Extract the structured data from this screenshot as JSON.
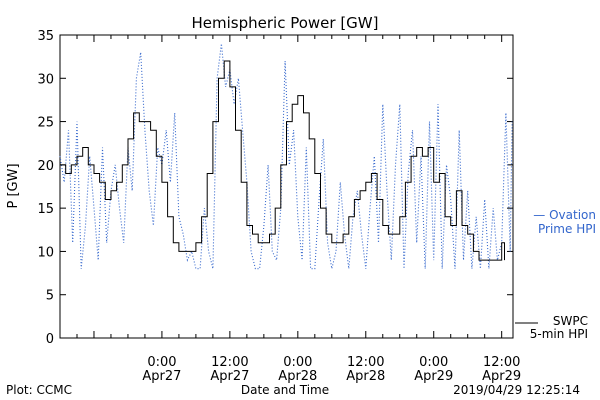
{
  "chart_data": {
    "type": "line",
    "title": "Hemispheric Power [GW]",
    "xlabel": "Date and Time",
    "ylabel": "P [GW]",
    "ylim": [
      0,
      35
    ],
    "yticks": [
      0,
      5,
      10,
      15,
      20,
      25,
      30,
      35
    ],
    "xlim": [
      "2019-04-26 06:00",
      "2019-04-29 14:00"
    ],
    "xticks": [
      {
        "t": "2019-04-27 00:00",
        "top": "0:00",
        "bottom": "Apr27"
      },
      {
        "t": "2019-04-27 12:00",
        "top": "12:00",
        "bottom": "Apr27"
      },
      {
        "t": "2019-04-28 00:00",
        "top": "0:00",
        "bottom": "Apr28"
      },
      {
        "t": "2019-04-28 12:00",
        "top": "12:00",
        "bottom": "Apr28"
      },
      {
        "t": "2019-04-29 00:00",
        "top": "0:00",
        "bottom": "Apr29"
      },
      {
        "t": "2019-04-29 12:00",
        "top": "12:00",
        "bottom": "Apr29"
      }
    ],
    "legend": [
      {
        "name_line1": "— Ovation",
        "name_line2": "Prime HPI",
        "color": "#3366cc",
        "style": "dotted"
      },
      {
        "name_line1": "SWPC",
        "name_line2": "5-min HPI",
        "color": "#000000",
        "style": "solid"
      }
    ],
    "series": [
      {
        "name": "Ovation Prime HPI",
        "color": "#3366cc",
        "style": "dotted",
        "points": [
          [
            "2019-04-26 06:00",
            21
          ],
          [
            "2019-04-26 06:45",
            18
          ],
          [
            "2019-04-26 07:30",
            24
          ],
          [
            "2019-04-26 08:15",
            11
          ],
          [
            "2019-04-26 09:00",
            25
          ],
          [
            "2019-04-26 09:45",
            8
          ],
          [
            "2019-04-26 10:30",
            13
          ],
          [
            "2019-04-26 11:15",
            21
          ],
          [
            "2019-04-26 12:00",
            15
          ],
          [
            "2019-04-26 12:45",
            9
          ],
          [
            "2019-04-26 13:30",
            22
          ],
          [
            "2019-04-26 14:15",
            11
          ],
          [
            "2019-04-26 15:00",
            17
          ],
          [
            "2019-04-26 15:45",
            20
          ],
          [
            "2019-04-26 16:30",
            15
          ],
          [
            "2019-04-26 17:15",
            11
          ],
          [
            "2019-04-26 18:00",
            22
          ],
          [
            "2019-04-26 18:45",
            17
          ],
          [
            "2019-04-26 19:30",
            30
          ],
          [
            "2019-04-26 20:15",
            33
          ],
          [
            "2019-04-26 21:00",
            24
          ],
          [
            "2019-04-26 21:45",
            17
          ],
          [
            "2019-04-26 22:30",
            13
          ],
          [
            "2019-04-26 23:15",
            22
          ],
          [
            "2019-04-27 00:00",
            20
          ],
          [
            "2019-04-27 00:45",
            24
          ],
          [
            "2019-04-27 01:30",
            18
          ],
          [
            "2019-04-27 02:15",
            26
          ],
          [
            "2019-04-27 03:00",
            14
          ],
          [
            "2019-04-27 03:45",
            12
          ],
          [
            "2019-04-27 04:30",
            9
          ],
          [
            "2019-04-27 05:15",
            10
          ],
          [
            "2019-04-27 06:00",
            8
          ],
          [
            "2019-04-27 06:45",
            8
          ],
          [
            "2019-04-27 07:30",
            15
          ],
          [
            "2019-04-27 08:15",
            10
          ],
          [
            "2019-04-27 09:00",
            8
          ],
          [
            "2019-04-27 09:45",
            30
          ],
          [
            "2019-04-27 10:30",
            34
          ],
          [
            "2019-04-27 11:15",
            29
          ],
          [
            "2019-04-27 12:00",
            31
          ],
          [
            "2019-04-27 12:45",
            27
          ],
          [
            "2019-04-27 13:30",
            30
          ],
          [
            "2019-04-27 14:15",
            24
          ],
          [
            "2019-04-27 15:00",
            18
          ],
          [
            "2019-04-27 15:45",
            10
          ],
          [
            "2019-04-27 16:30",
            8
          ],
          [
            "2019-04-27 17:15",
            8
          ],
          [
            "2019-04-27 18:00",
            13
          ],
          [
            "2019-04-27 18:45",
            20
          ],
          [
            "2019-04-27 19:30",
            10
          ],
          [
            "2019-04-27 20:15",
            9
          ],
          [
            "2019-04-27 21:00",
            15
          ],
          [
            "2019-04-27 21:45",
            32
          ],
          [
            "2019-04-27 22:30",
            20
          ],
          [
            "2019-04-27 23:15",
            24
          ],
          [
            "2019-04-28 00:00",
            14
          ],
          [
            "2019-04-28 00:45",
            9
          ],
          [
            "2019-04-28 01:30",
            22
          ],
          [
            "2019-04-28 02:15",
            8
          ],
          [
            "2019-04-28 03:00",
            8
          ],
          [
            "2019-04-28 03:45",
            16
          ],
          [
            "2019-04-28 04:30",
            23
          ],
          [
            "2019-04-28 05:15",
            11
          ],
          [
            "2019-04-28 06:00",
            8
          ],
          [
            "2019-04-28 06:45",
            10
          ],
          [
            "2019-04-28 07:30",
            18
          ],
          [
            "2019-04-28 08:15",
            12
          ],
          [
            "2019-04-28 09:00",
            8
          ],
          [
            "2019-04-28 09:45",
            14
          ],
          [
            "2019-04-28 10:30",
            17
          ],
          [
            "2019-04-28 11:15",
            12
          ],
          [
            "2019-04-28 12:00",
            8
          ],
          [
            "2019-04-28 12:45",
            15
          ],
          [
            "2019-04-28 13:30",
            21
          ],
          [
            "2019-04-28 14:15",
            11
          ],
          [
            "2019-04-28 15:00",
            27
          ],
          [
            "2019-04-28 15:45",
            17
          ],
          [
            "2019-04-28 16:30",
            9
          ],
          [
            "2019-04-28 17:15",
            20
          ],
          [
            "2019-04-28 18:00",
            27
          ],
          [
            "2019-04-28 18:45",
            8
          ],
          [
            "2019-04-28 19:30",
            19
          ],
          [
            "2019-04-28 20:15",
            24
          ],
          [
            "2019-04-28 21:00",
            11
          ],
          [
            "2019-04-28 21:45",
            21
          ],
          [
            "2019-04-28 22:30",
            8
          ],
          [
            "2019-04-28 23:15",
            25
          ],
          [
            "2019-04-29 00:00",
            9
          ],
          [
            "2019-04-29 00:45",
            27
          ],
          [
            "2019-04-29 01:30",
            8
          ],
          [
            "2019-04-29 02:15",
            20
          ],
          [
            "2019-04-29 03:00",
            16
          ],
          [
            "2019-04-29 03:45",
            8
          ],
          [
            "2019-04-29 04:30",
            24
          ],
          [
            "2019-04-29 05:15",
            9
          ],
          [
            "2019-04-29 06:00",
            17
          ],
          [
            "2019-04-29 06:45",
            8
          ],
          [
            "2019-04-29 07:30",
            14
          ],
          [
            "2019-04-29 08:15",
            8
          ],
          [
            "2019-04-29 09:00",
            16
          ],
          [
            "2019-04-29 09:45",
            8
          ],
          [
            "2019-04-29 10:30",
            15
          ],
          [
            "2019-04-29 11:15",
            9
          ],
          [
            "2019-04-29 12:00",
            11
          ],
          [
            "2019-04-29 12:45",
            26
          ],
          [
            "2019-04-29 13:30",
            10
          ],
          [
            "2019-04-29 13:50",
            25
          ]
        ]
      },
      {
        "name": "SWPC 5-min HPI",
        "color": "#000000",
        "style": "solid",
        "points": [
          [
            "2019-04-26 06:00",
            20
          ],
          [
            "2019-04-26 07:00",
            19
          ],
          [
            "2019-04-26 08:00",
            20
          ],
          [
            "2019-04-26 09:00",
            21
          ],
          [
            "2019-04-26 10:00",
            22
          ],
          [
            "2019-04-26 11:00",
            20
          ],
          [
            "2019-04-26 12:00",
            19
          ],
          [
            "2019-04-26 13:00",
            18
          ],
          [
            "2019-04-26 14:00",
            16
          ],
          [
            "2019-04-26 15:00",
            17
          ],
          [
            "2019-04-26 16:00",
            18
          ],
          [
            "2019-04-26 17:00",
            20
          ],
          [
            "2019-04-26 18:00",
            23
          ],
          [
            "2019-04-26 19:00",
            26
          ],
          [
            "2019-04-26 20:00",
            25
          ],
          [
            "2019-04-26 21:00",
            25
          ],
          [
            "2019-04-26 22:00",
            24
          ],
          [
            "2019-04-26 23:00",
            21
          ],
          [
            "2019-04-27 00:00",
            18
          ],
          [
            "2019-04-27 01:00",
            14
          ],
          [
            "2019-04-27 02:00",
            11
          ],
          [
            "2019-04-27 03:00",
            10
          ],
          [
            "2019-04-27 04:00",
            10
          ],
          [
            "2019-04-27 05:00",
            10
          ],
          [
            "2019-04-27 06:00",
            11
          ],
          [
            "2019-04-27 07:00",
            14
          ],
          [
            "2019-04-27 08:00",
            19
          ],
          [
            "2019-04-27 09:00",
            25
          ],
          [
            "2019-04-27 10:00",
            30
          ],
          [
            "2019-04-27 11:00",
            32
          ],
          [
            "2019-04-27 12:00",
            29
          ],
          [
            "2019-04-27 13:00",
            24
          ],
          [
            "2019-04-27 14:00",
            18
          ],
          [
            "2019-04-27 15:00",
            13
          ],
          [
            "2019-04-27 16:00",
            12
          ],
          [
            "2019-04-27 17:00",
            11
          ],
          [
            "2019-04-27 18:00",
            11
          ],
          [
            "2019-04-27 19:00",
            12
          ],
          [
            "2019-04-27 20:00",
            15
          ],
          [
            "2019-04-27 21:00",
            20
          ],
          [
            "2019-04-27 22:00",
            25
          ],
          [
            "2019-04-27 23:00",
            27
          ],
          [
            "2019-04-28 00:00",
            28
          ],
          [
            "2019-04-28 01:00",
            26
          ],
          [
            "2019-04-28 02:00",
            23
          ],
          [
            "2019-04-28 03:00",
            19
          ],
          [
            "2019-04-28 04:00",
            15
          ],
          [
            "2019-04-28 05:00",
            12
          ],
          [
            "2019-04-28 06:00",
            11
          ],
          [
            "2019-04-28 07:00",
            11
          ],
          [
            "2019-04-28 08:00",
            12
          ],
          [
            "2019-04-28 09:00",
            14
          ],
          [
            "2019-04-28 10:00",
            16
          ],
          [
            "2019-04-28 11:00",
            17
          ],
          [
            "2019-04-28 12:00",
            18
          ],
          [
            "2019-04-28 13:00",
            19
          ],
          [
            "2019-04-28 14:00",
            16
          ],
          [
            "2019-04-28 15:00",
            13
          ],
          [
            "2019-04-28 16:00",
            12
          ],
          [
            "2019-04-28 17:00",
            12
          ],
          [
            "2019-04-28 18:00",
            14
          ],
          [
            "2019-04-28 19:00",
            18
          ],
          [
            "2019-04-28 20:00",
            21
          ],
          [
            "2019-04-28 21:00",
            22
          ],
          [
            "2019-04-28 22:00",
            21
          ],
          [
            "2019-04-28 23:00",
            22
          ],
          [
            "2019-04-29 00:00",
            18
          ],
          [
            "2019-04-29 01:00",
            19
          ],
          [
            "2019-04-29 02:00",
            14
          ],
          [
            "2019-04-29 03:00",
            13
          ],
          [
            "2019-04-29 04:00",
            17
          ],
          [
            "2019-04-29 05:00",
            13
          ],
          [
            "2019-04-29 06:00",
            12
          ],
          [
            "2019-04-29 07:00",
            10
          ],
          [
            "2019-04-29 08:00",
            9
          ],
          [
            "2019-04-29 09:00",
            9
          ],
          [
            "2019-04-29 10:00",
            9
          ],
          [
            "2019-04-29 11:00",
            9
          ],
          [
            "2019-04-29 12:00",
            11
          ],
          [
            "2019-04-29 12:30",
            9
          ]
        ]
      }
    ]
  },
  "footer": {
    "plot_credit": "Plot: CCMC",
    "timestamp": "2019/04/29 12:25:14"
  }
}
